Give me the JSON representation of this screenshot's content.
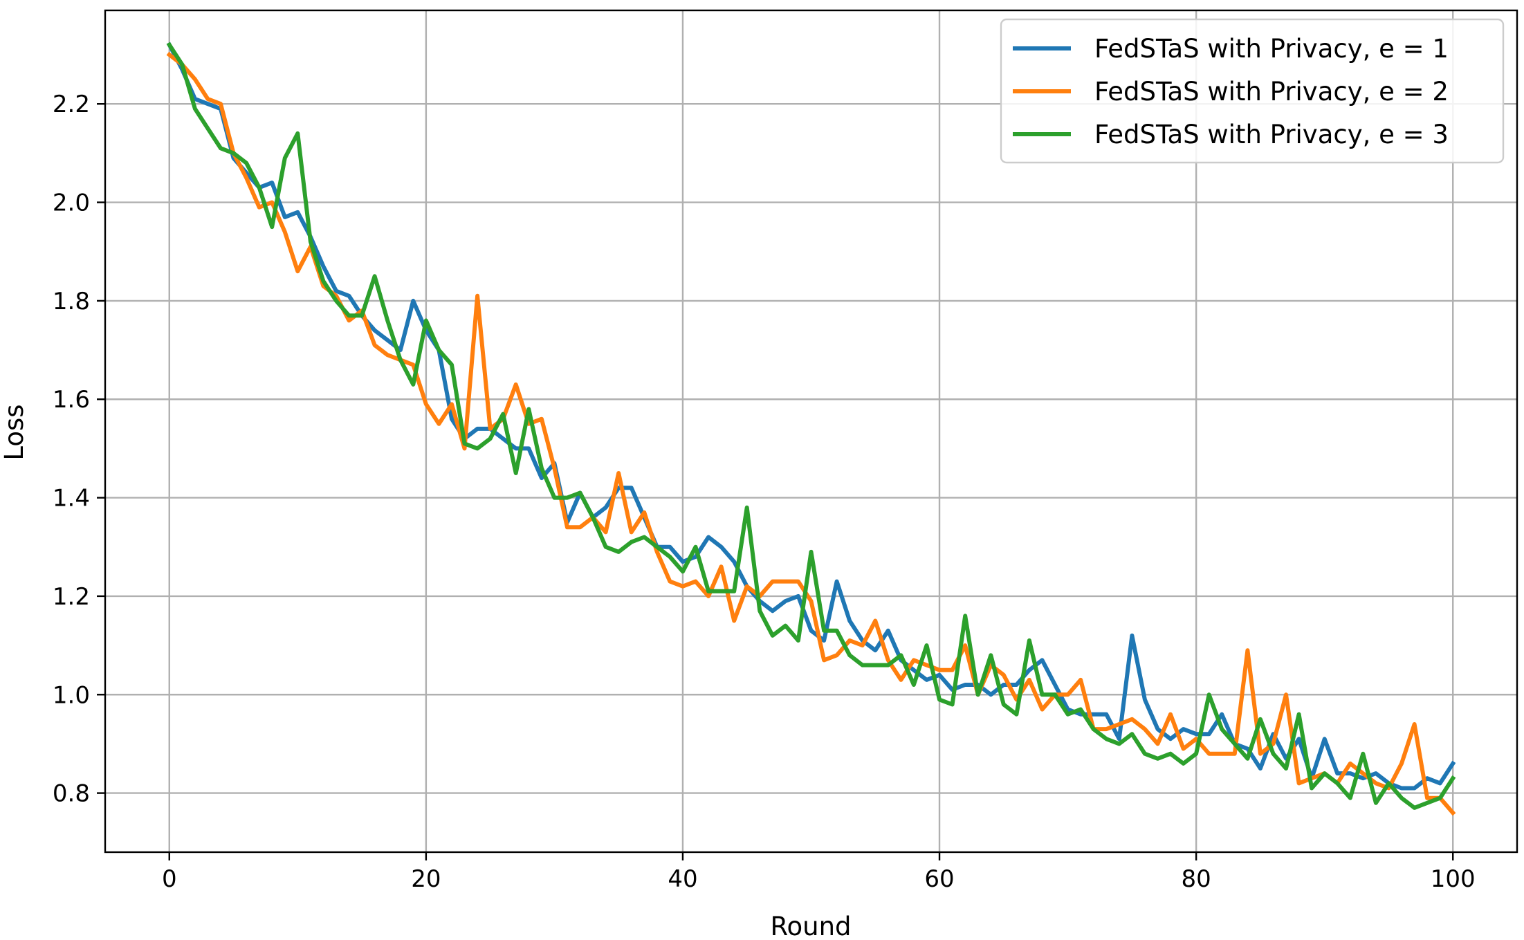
{
  "chart_data": {
    "type": "line",
    "title": "",
    "xlabel": "Round",
    "ylabel": "Loss",
    "xlim": [
      -5,
      105
    ],
    "ylim": [
      0.68,
      2.39
    ],
    "xticks": [
      0,
      20,
      40,
      60,
      80,
      100
    ],
    "yticks": [
      0.8,
      1.0,
      1.2,
      1.4,
      1.6,
      1.8,
      2.0,
      2.2
    ],
    "xtick_labels": [
      "0",
      "20",
      "40",
      "60",
      "80",
      "100"
    ],
    "ytick_labels": [
      "0.8",
      "1.0",
      "1.2",
      "1.4",
      "1.6",
      "1.8",
      "2.0",
      "2.2"
    ],
    "grid": true,
    "legend_position": "top-right",
    "colors": [
      "#1f77b4",
      "#ff7f0e",
      "#2ca02c"
    ],
    "series": [
      {
        "name": "FedSTaS with Privacy, e = 1",
        "values": [
          2.32,
          2.27,
          2.21,
          2.2,
          2.19,
          2.09,
          2.06,
          2.03,
          2.04,
          1.97,
          1.98,
          1.93,
          1.87,
          1.82,
          1.81,
          1.77,
          1.74,
          1.72,
          1.7,
          1.8,
          1.74,
          1.7,
          1.56,
          1.52,
          1.54,
          1.54,
          1.52,
          1.5,
          1.5,
          1.44,
          1.47,
          1.35,
          1.41,
          1.36,
          1.38,
          1.42,
          1.42,
          1.36,
          1.3,
          1.3,
          1.27,
          1.28,
          1.32,
          1.3,
          1.27,
          1.22,
          1.19,
          1.17,
          1.19,
          1.2,
          1.13,
          1.11,
          1.23,
          1.15,
          1.11,
          1.09,
          1.13,
          1.07,
          1.05,
          1.03,
          1.04,
          1.01,
          1.02,
          1.02,
          1.0,
          1.02,
          1.02,
          1.05,
          1.07,
          1.02,
          0.97,
          0.96,
          0.96,
          0.96,
          0.91,
          1.12,
          0.99,
          0.93,
          0.91,
          0.93,
          0.92,
          0.92,
          0.96,
          0.9,
          0.89,
          0.85,
          0.92,
          0.87,
          0.91,
          0.83,
          0.91,
          0.84,
          0.84,
          0.83,
          0.84,
          0.82,
          0.81,
          0.81,
          0.83,
          0.82,
          0.86
        ]
      },
      {
        "name": "FedSTaS with Privacy, e = 2",
        "values": [
          2.3,
          2.28,
          2.25,
          2.21,
          2.2,
          2.1,
          2.05,
          1.99,
          2.0,
          1.94,
          1.86,
          1.91,
          1.83,
          1.81,
          1.76,
          1.78,
          1.71,
          1.69,
          1.68,
          1.67,
          1.59,
          1.55,
          1.59,
          1.5,
          1.81,
          1.54,
          1.56,
          1.63,
          1.55,
          1.56,
          1.46,
          1.34,
          1.34,
          1.36,
          1.33,
          1.45,
          1.33,
          1.37,
          1.29,
          1.23,
          1.22,
          1.23,
          1.2,
          1.26,
          1.15,
          1.22,
          1.2,
          1.23,
          1.23,
          1.23,
          1.19,
          1.07,
          1.08,
          1.11,
          1.1,
          1.15,
          1.07,
          1.03,
          1.07,
          1.06,
          1.05,
          1.05,
          1.1,
          1.0,
          1.06,
          1.04,
          0.99,
          1.03,
          0.97,
          1.0,
          1.0,
          1.03,
          0.93,
          0.93,
          0.94,
          0.95,
          0.93,
          0.9,
          0.96,
          0.89,
          0.91,
          0.88,
          0.88,
          0.88,
          1.09,
          0.88,
          0.9,
          1.0,
          0.82,
          0.83,
          0.84,
          0.82,
          0.86,
          0.84,
          0.82,
          0.81,
          0.86,
          0.94,
          0.79,
          0.79,
          0.76
        ]
      },
      {
        "name": "FedSTaS with Privacy, e = 3",
        "values": [
          2.32,
          2.28,
          2.19,
          2.15,
          2.11,
          2.1,
          2.08,
          2.03,
          1.95,
          2.09,
          2.14,
          1.92,
          1.84,
          1.8,
          1.77,
          1.77,
          1.85,
          1.76,
          1.68,
          1.63,
          1.76,
          1.7,
          1.67,
          1.51,
          1.5,
          1.52,
          1.57,
          1.45,
          1.58,
          1.46,
          1.4,
          1.4,
          1.41,
          1.36,
          1.3,
          1.29,
          1.31,
          1.32,
          1.3,
          1.28,
          1.25,
          1.3,
          1.21,
          1.21,
          1.21,
          1.38,
          1.17,
          1.12,
          1.14,
          1.11,
          1.29,
          1.13,
          1.13,
          1.08,
          1.06,
          1.06,
          1.06,
          1.08,
          1.02,
          1.1,
          0.99,
          0.98,
          1.16,
          1.0,
          1.08,
          0.98,
          0.96,
          1.11,
          1.0,
          1.0,
          0.96,
          0.97,
          0.93,
          0.91,
          0.9,
          0.92,
          0.88,
          0.87,
          0.88,
          0.86,
          0.88,
          1.0,
          0.93,
          0.9,
          0.87,
          0.95,
          0.88,
          0.85,
          0.96,
          0.81,
          0.84,
          0.82,
          0.79,
          0.88,
          0.78,
          0.82,
          0.79,
          0.77,
          0.78,
          0.79,
          0.83
        ]
      }
    ]
  }
}
